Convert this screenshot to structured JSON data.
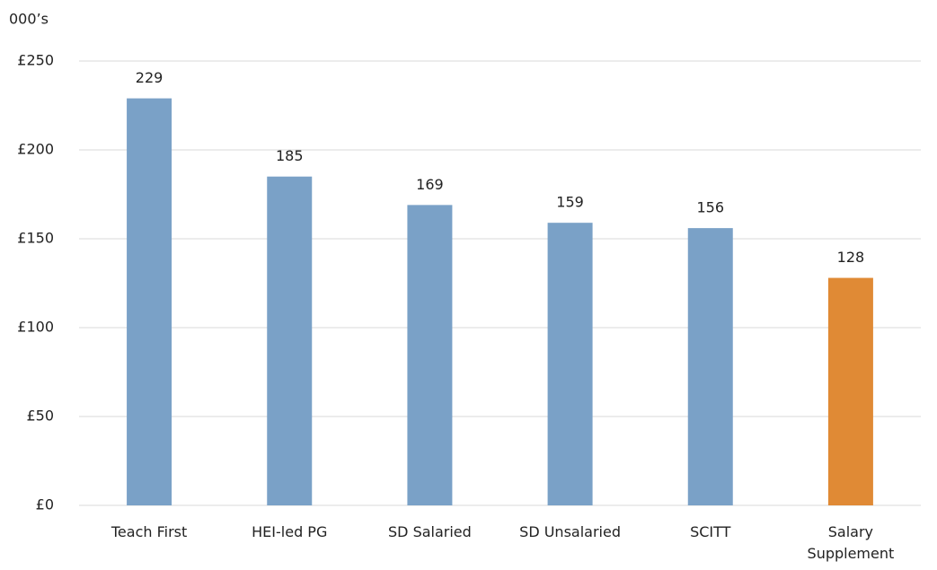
{
  "chart_data": {
    "type": "bar",
    "y_unit_label": "000’s",
    "categories": [
      "Teach First",
      "HEI-led PG",
      "SD Salaried",
      "SD Unsalaried",
      "SCITT",
      "Salary Supplement"
    ],
    "values": [
      229,
      185,
      169,
      159,
      156,
      128
    ],
    "colors": [
      "#7aa1c7",
      "#7aa1c7",
      "#7aa1c7",
      "#7aa1c7",
      "#7aa1c7",
      "#e08a35"
    ],
    "ylim": [
      0,
      250
    ],
    "yticks": [
      {
        "value": 0,
        "label": "£0"
      },
      {
        "value": 50,
        "label": "£50"
      },
      {
        "value": 100,
        "label": "£100"
      },
      {
        "value": 150,
        "label": "£150"
      },
      {
        "value": 200,
        "label": "£200"
      },
      {
        "value": 250,
        "label": "£250"
      }
    ],
    "grid": true
  }
}
